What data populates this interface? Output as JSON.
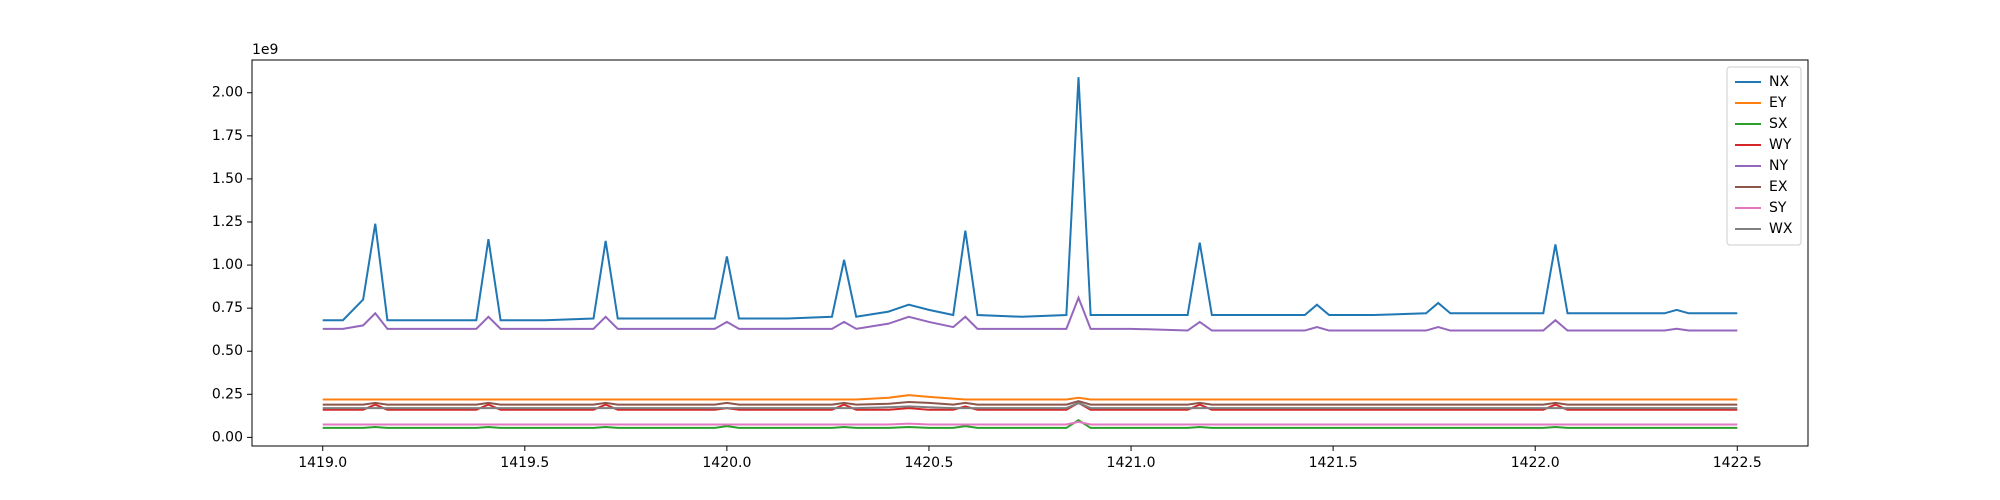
{
  "chart_data": {
    "type": "line",
    "y_offset_label": "1e9",
    "x": [
      1419.0,
      1419.05,
      1419.1,
      1419.13,
      1419.16,
      1419.25,
      1419.35,
      1419.38,
      1419.41,
      1419.44,
      1419.55,
      1419.67,
      1419.7,
      1419.73,
      1419.85,
      1419.97,
      1420.0,
      1420.03,
      1420.15,
      1420.26,
      1420.29,
      1420.32,
      1420.4,
      1420.45,
      1420.5,
      1420.56,
      1420.59,
      1420.62,
      1420.73,
      1420.84,
      1420.87,
      1420.9,
      1421.0,
      1421.14,
      1421.17,
      1421.2,
      1421.3,
      1421.43,
      1421.46,
      1421.49,
      1421.6,
      1421.73,
      1421.76,
      1421.79,
      1421.9,
      1422.02,
      1422.05,
      1422.08,
      1422.2,
      1422.32,
      1422.35,
      1422.38,
      1422.5
    ],
    "series": [
      {
        "name": "NX",
        "color": "#1f77b4",
        "values": [
          0.68,
          0.68,
          0.8,
          1.24,
          0.68,
          0.68,
          0.68,
          0.68,
          1.15,
          0.68,
          0.68,
          0.69,
          1.14,
          0.69,
          0.69,
          0.69,
          1.05,
          0.69,
          0.69,
          0.7,
          1.03,
          0.7,
          0.73,
          0.77,
          0.74,
          0.71,
          1.2,
          0.71,
          0.7,
          0.71,
          2.09,
          0.71,
          0.71,
          0.71,
          1.13,
          0.71,
          0.71,
          0.71,
          0.77,
          0.71,
          0.71,
          0.72,
          0.78,
          0.72,
          0.72,
          0.72,
          1.12,
          0.72,
          0.72,
          0.72,
          0.74,
          0.72,
          0.72
        ]
      },
      {
        "name": "EY",
        "color": "#ff7f0e",
        "values": [
          0.22,
          0.22,
          0.22,
          0.22,
          0.22,
          0.22,
          0.22,
          0.22,
          0.22,
          0.22,
          0.22,
          0.22,
          0.22,
          0.22,
          0.22,
          0.22,
          0.22,
          0.22,
          0.22,
          0.22,
          0.22,
          0.22,
          0.23,
          0.245,
          0.235,
          0.225,
          0.22,
          0.22,
          0.22,
          0.22,
          0.23,
          0.22,
          0.22,
          0.22,
          0.22,
          0.22,
          0.22,
          0.22,
          0.22,
          0.22,
          0.22,
          0.22,
          0.22,
          0.22,
          0.22,
          0.22,
          0.22,
          0.22,
          0.22,
          0.22,
          0.22,
          0.22,
          0.22
        ]
      },
      {
        "name": "SX",
        "color": "#2ca02c",
        "values": [
          0.055,
          0.055,
          0.055,
          0.06,
          0.055,
          0.055,
          0.055,
          0.055,
          0.06,
          0.055,
          0.055,
          0.055,
          0.06,
          0.055,
          0.055,
          0.055,
          0.065,
          0.055,
          0.055,
          0.055,
          0.06,
          0.055,
          0.055,
          0.06,
          0.055,
          0.055,
          0.065,
          0.055,
          0.055,
          0.055,
          0.1,
          0.055,
          0.055,
          0.055,
          0.06,
          0.055,
          0.055,
          0.055,
          0.055,
          0.055,
          0.055,
          0.055,
          0.055,
          0.055,
          0.055,
          0.055,
          0.06,
          0.055,
          0.055,
          0.055,
          0.055,
          0.055,
          0.055
        ]
      },
      {
        "name": "WY",
        "color": "#d62728",
        "values": [
          0.16,
          0.16,
          0.16,
          0.19,
          0.16,
          0.16,
          0.16,
          0.16,
          0.19,
          0.16,
          0.16,
          0.16,
          0.19,
          0.16,
          0.16,
          0.16,
          0.17,
          0.16,
          0.16,
          0.16,
          0.19,
          0.16,
          0.16,
          0.17,
          0.16,
          0.16,
          0.18,
          0.16,
          0.16,
          0.16,
          0.2,
          0.16,
          0.16,
          0.16,
          0.19,
          0.16,
          0.16,
          0.16,
          0.16,
          0.16,
          0.16,
          0.16,
          0.16,
          0.16,
          0.16,
          0.16,
          0.19,
          0.16,
          0.16,
          0.16,
          0.16,
          0.16,
          0.16
        ]
      },
      {
        "name": "NY",
        "color": "#9467bd",
        "values": [
          0.63,
          0.63,
          0.65,
          0.72,
          0.63,
          0.63,
          0.63,
          0.63,
          0.7,
          0.63,
          0.63,
          0.63,
          0.7,
          0.63,
          0.63,
          0.63,
          0.67,
          0.63,
          0.63,
          0.63,
          0.67,
          0.63,
          0.66,
          0.7,
          0.67,
          0.64,
          0.7,
          0.63,
          0.63,
          0.63,
          0.81,
          0.63,
          0.63,
          0.62,
          0.67,
          0.62,
          0.62,
          0.62,
          0.64,
          0.62,
          0.62,
          0.62,
          0.64,
          0.62,
          0.62,
          0.62,
          0.68,
          0.62,
          0.62,
          0.62,
          0.63,
          0.62,
          0.62
        ]
      },
      {
        "name": "EX",
        "color": "#8c564b",
        "values": [
          0.19,
          0.19,
          0.19,
          0.2,
          0.19,
          0.19,
          0.19,
          0.19,
          0.2,
          0.19,
          0.19,
          0.19,
          0.2,
          0.19,
          0.19,
          0.19,
          0.2,
          0.19,
          0.19,
          0.19,
          0.2,
          0.19,
          0.195,
          0.205,
          0.2,
          0.19,
          0.2,
          0.19,
          0.19,
          0.19,
          0.21,
          0.19,
          0.19,
          0.19,
          0.2,
          0.19,
          0.19,
          0.19,
          0.19,
          0.19,
          0.19,
          0.19,
          0.19,
          0.19,
          0.19,
          0.19,
          0.2,
          0.19,
          0.19,
          0.19,
          0.19,
          0.19,
          0.19
        ]
      },
      {
        "name": "SY",
        "color": "#e377c2",
        "values": [
          0.075,
          0.075,
          0.075,
          0.075,
          0.075,
          0.075,
          0.075,
          0.075,
          0.075,
          0.075,
          0.075,
          0.075,
          0.075,
          0.075,
          0.075,
          0.075,
          0.075,
          0.075,
          0.075,
          0.075,
          0.075,
          0.075,
          0.075,
          0.08,
          0.075,
          0.075,
          0.075,
          0.075,
          0.075,
          0.075,
          0.09,
          0.075,
          0.075,
          0.075,
          0.075,
          0.075,
          0.075,
          0.075,
          0.075,
          0.075,
          0.075,
          0.075,
          0.075,
          0.075,
          0.075,
          0.075,
          0.075,
          0.075,
          0.075,
          0.075,
          0.075,
          0.075,
          0.075
        ]
      },
      {
        "name": "WX",
        "color": "#7f7f7f",
        "values": [
          0.17,
          0.17,
          0.17,
          0.17,
          0.17,
          0.17,
          0.17,
          0.17,
          0.17,
          0.17,
          0.17,
          0.17,
          0.17,
          0.17,
          0.17,
          0.17,
          0.17,
          0.17,
          0.17,
          0.17,
          0.17,
          0.17,
          0.175,
          0.18,
          0.175,
          0.17,
          0.17,
          0.17,
          0.17,
          0.17,
          0.2,
          0.17,
          0.17,
          0.17,
          0.17,
          0.17,
          0.17,
          0.17,
          0.17,
          0.17,
          0.17,
          0.17,
          0.17,
          0.17,
          0.17,
          0.17,
          0.17,
          0.17,
          0.17,
          0.17,
          0.17,
          0.17,
          0.17
        ]
      }
    ],
    "xlim": [
      1418.825,
      1422.675
    ],
    "xticks": [
      {
        "value": 1419,
        "label": "1419.0"
      },
      1419.5,
      {
        "value": 1420,
        "label": "1420.0"
      },
      1420.5,
      {
        "value": 1421,
        "label": "1421.0"
      },
      1421.5,
      {
        "value": 1422,
        "label": "1422.0"
      },
      1422.5
    ],
    "ylim": [
      -0.05,
      2.19
    ],
    "yticks": [
      {
        "value": 0,
        "label": "0.00"
      },
      {
        "value": 0.25,
        "label": "0.25"
      },
      {
        "value": 0.5,
        "label": "0.50"
      },
      {
        "value": 0.75,
        "label": "0.75"
      },
      {
        "value": 1,
        "label": "1.00"
      },
      {
        "value": 1.25,
        "label": "1.25"
      },
      {
        "value": 1.5,
        "label": "1.50"
      },
      {
        "value": 1.75,
        "label": "1.75"
      },
      {
        "value": 2,
        "label": "2.00"
      }
    ],
    "legend": "upper right",
    "grid": false
  }
}
